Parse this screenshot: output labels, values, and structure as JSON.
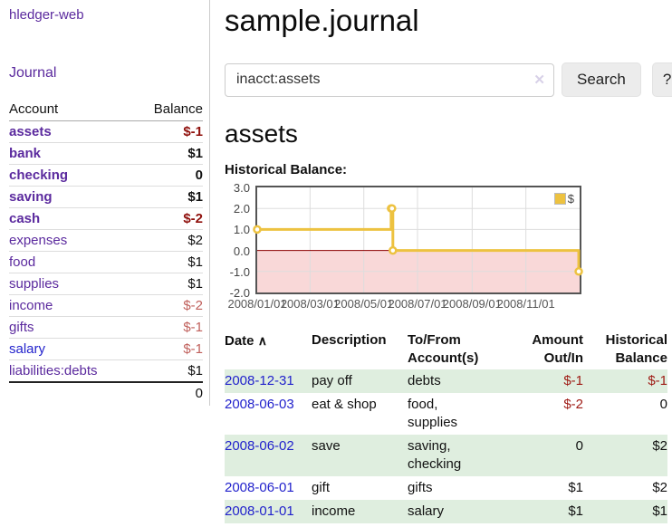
{
  "app": {
    "title": "hledger-web",
    "nav_journal": "Journal"
  },
  "colors": {
    "purple_link": "#5b2a9e",
    "blue_link": "#2222cc",
    "negative_dark": "#8f100c",
    "negative_light": "#c0605c",
    "table_negative": "#9e1a14",
    "row_stripe_green": "#dfeedf",
    "chart_line": "#edc240",
    "chart_negative_fill": "#f9d8d8",
    "chart_zero_line": "#8b0000"
  },
  "sidebar": {
    "header": {
      "account": "Account",
      "balance": "Balance"
    },
    "accounts": [
      {
        "name": "assets",
        "balance": "$-1"
      },
      {
        "name": "bank",
        "balance": "$1"
      },
      {
        "name": "checking",
        "balance": "0"
      },
      {
        "name": "saving",
        "balance": "$1"
      },
      {
        "name": "cash",
        "balance": "$-2"
      },
      {
        "name": "expenses",
        "balance": "$2"
      },
      {
        "name": "food",
        "balance": "$1"
      },
      {
        "name": "supplies",
        "balance": "$1"
      },
      {
        "name": "income",
        "balance": "$-2"
      },
      {
        "name": "gifts",
        "balance": "$-1"
      },
      {
        "name": "salary",
        "balance": "$-1"
      },
      {
        "name": "liabilities:debts",
        "balance": "$1"
      }
    ],
    "total": "0"
  },
  "main": {
    "title": "sample.journal",
    "search": {
      "value": "inacct:assets",
      "clear_icon": "✕",
      "button": "Search",
      "help": "?"
    },
    "account_heading": "assets",
    "chart_label": "Historical Balance:"
  },
  "chart_data": {
    "type": "line",
    "step": true,
    "title": "Historical Balance",
    "series": [
      {
        "name": "$",
        "color": "#edc240",
        "points": [
          [
            "2008-01-01",
            1
          ],
          [
            "2008-06-01",
            2
          ],
          [
            "2008-06-02",
            2
          ],
          [
            "2008-06-03",
            0
          ],
          [
            "2008-12-31",
            -1
          ]
        ]
      }
    ],
    "x_ticks": [
      "2008/01/01",
      "2008/03/01",
      "2008/05/01",
      "2008/07/01",
      "2008/09/01",
      "2008/11/01"
    ],
    "y_ticks": [
      "3.0",
      "2.0",
      "1.0",
      "0.0",
      "-1.0",
      "-2.0"
    ],
    "ylim": [
      -2,
      3
    ],
    "xlim": [
      "2008-01-01",
      "2009-01-01"
    ],
    "grid": true,
    "legend_position": "top-right",
    "negative_fill": "#f9d8d8",
    "zero_line_color": "#8b0000"
  },
  "register": {
    "headers": {
      "date": "Date",
      "sort_icon": "∧",
      "description": "Description",
      "accounts_1": "To/From",
      "accounts_2": "Account(s)",
      "amount_1": "Amount",
      "amount_2": "Out/In",
      "balance_1": "Historical",
      "balance_2": "Balance"
    },
    "rows": [
      {
        "date": "2008-12-31",
        "description": "pay off",
        "accounts": "debts",
        "amount": "$-1",
        "balance": "$-1"
      },
      {
        "date": "2008-06-03",
        "description": "eat & shop",
        "accounts": "food, supplies",
        "amount": "$-2",
        "balance": "0"
      },
      {
        "date": "2008-06-02",
        "description": "save",
        "accounts": "saving, checking",
        "amount": "0",
        "balance": "$2"
      },
      {
        "date": "2008-06-01",
        "description": "gift",
        "accounts": "gifts",
        "amount": "$1",
        "balance": "$2"
      },
      {
        "date": "2008-01-01",
        "description": "income",
        "accounts": "salary",
        "amount": "$1",
        "balance": "$1"
      }
    ]
  }
}
